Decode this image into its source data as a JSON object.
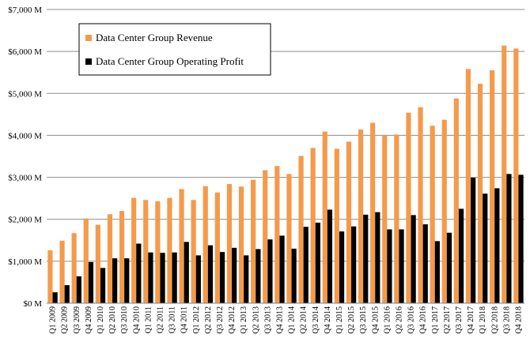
{
  "chart_data": {
    "type": "bar",
    "title": "",
    "xlabel": "",
    "ylabel": "",
    "ylim": [
      0,
      7000
    ],
    "yticks": [
      0,
      1000,
      2000,
      3000,
      4000,
      5000,
      6000,
      7000
    ],
    "ytick_labels": [
      "$0 M",
      "$1,000 M",
      "$2,000 M",
      "$3,000 M",
      "$4,000 M",
      "$5,000 M",
      "$6,000 M",
      "$7,000 M"
    ],
    "grid": true,
    "legend_position": "top-left",
    "categories": [
      "Q1 2009",
      "Q2 2009",
      "Q3 2009",
      "Q4 2009",
      "Q1 2010",
      "Q2 2010",
      "Q3 2010",
      "Q4 2010",
      "Q1 2011",
      "Q2 2011",
      "Q3 2011",
      "Q4 2011",
      "Q1 2012",
      "Q2 2012",
      "Q3 2012",
      "Q4 2012",
      "Q1 2013",
      "Q2 2013",
      "Q3 2013",
      "Q4 2013",
      "Q1 2014",
      "Q2 2014",
      "Q3 2014",
      "Q4 2014",
      "Q1 2015",
      "Q2 2015",
      "Q3 2015",
      "Q4 2015",
      "Q1 2016",
      "Q2 2016",
      "Q3 2016",
      "Q4 2016",
      "Q1 2017",
      "Q2 2017",
      "Q3 2017",
      "Q4 2017",
      "Q1 2018",
      "Q2 2018",
      "Q3 2018",
      "Q4 2018"
    ],
    "series": [
      {
        "name": "Data Center Group Revenue",
        "color": "#f59a4b",
        "values": [
          1260,
          1490,
          1670,
          2020,
          1870,
          2120,
          2200,
          2510,
          2460,
          2430,
          2510,
          2720,
          2460,
          2790,
          2640,
          2840,
          2780,
          2940,
          3170,
          3270,
          3080,
          3510,
          3700,
          4090,
          3680,
          3850,
          4140,
          4300,
          4000,
          4020,
          4540,
          4670,
          4230,
          4370,
          4880,
          5580,
          5230,
          5550,
          6140,
          6070
        ]
      },
      {
        "name": "Data Center Group Operating Profit",
        "color": "#000000",
        "values": [
          260,
          430,
          640,
          980,
          840,
          1070,
          1070,
          1420,
          1210,
          1200,
          1210,
          1460,
          1140,
          1380,
          1220,
          1320,
          1140,
          1290,
          1520,
          1610,
          1300,
          1820,
          1920,
          2230,
          1710,
          1830,
          2110,
          2170,
          1760,
          1760,
          2100,
          1880,
          1480,
          1680,
          2250,
          2990,
          2610,
          2740,
          3080,
          3060
        ]
      }
    ]
  }
}
